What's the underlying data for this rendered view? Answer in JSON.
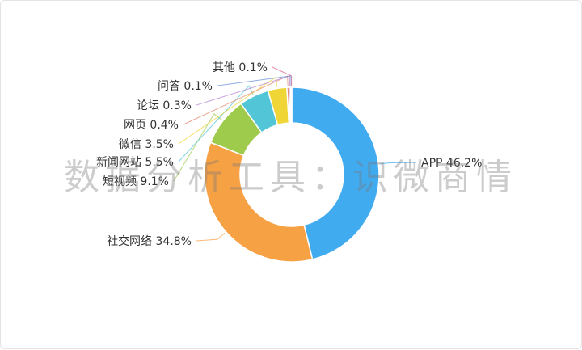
{
  "chart_data": {
    "type": "pie",
    "variant": "donut",
    "title": "",
    "unit": "%",
    "slices": [
      {
        "name": "APP",
        "value": 46.2,
        "label": "APP 46.2%",
        "color": "#41ABF0"
      },
      {
        "name": "社交网络",
        "value": 34.8,
        "label": "社交网络 34.8%",
        "color": "#F7A145"
      },
      {
        "name": "短视频",
        "value": 9.1,
        "label": "短视频 9.1%",
        "color": "#9FCB4D"
      },
      {
        "name": "新闻网站",
        "value": 5.5,
        "label": "新闻网站 5.5%",
        "color": "#52C5D6"
      },
      {
        "name": "微信",
        "value": 3.5,
        "label": "微信 3.5%",
        "color": "#EFD535"
      },
      {
        "name": "网页",
        "value": 0.4,
        "label": "网页 0.4%",
        "color": "#E58A6F"
      },
      {
        "name": "论坛",
        "value": 0.3,
        "label": "论坛 0.3%",
        "color": "#B98BD6"
      },
      {
        "name": "问答",
        "value": 0.1,
        "label": "问答 0.1%",
        "color": "#6F93D9"
      },
      {
        "name": "其他",
        "value": 0.1,
        "label": "其他 0.1%",
        "color": "#D86A8E"
      }
    ]
  },
  "watermark": {
    "text": "数据分析工具：识微商情"
  }
}
